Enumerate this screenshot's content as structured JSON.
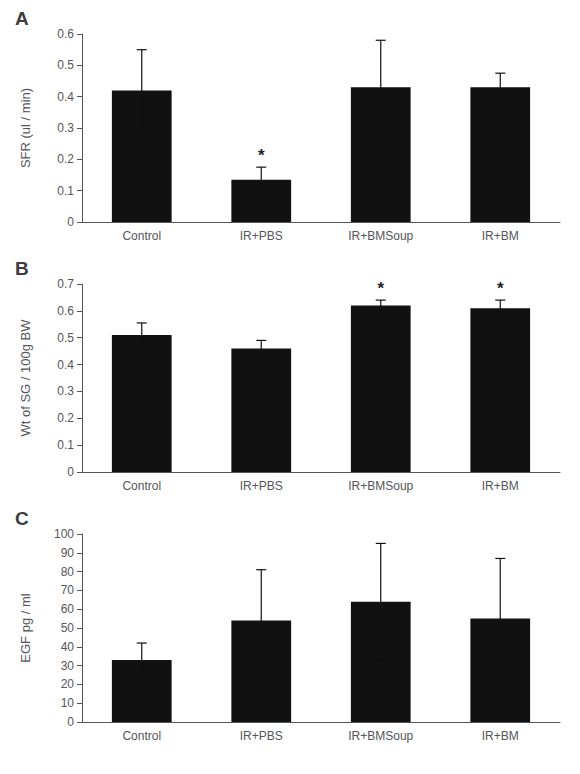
{
  "chart_data": [
    {
      "type": "bar",
      "title": "A",
      "categories": [
        "Control",
        "IR+PBS",
        "IR+BMSoup",
        "IR+BM"
      ],
      "values": [
        0.42,
        0.135,
        0.43,
        0.43
      ],
      "errors": [
        0.13,
        0.04,
        0.15,
        0.045
      ],
      "ylabel": "SFR (ul / min)",
      "ylim": [
        0,
        0.6
      ],
      "yticks": [
        0,
        0.1,
        0.2,
        0.3,
        0.4,
        0.5,
        0.6
      ],
      "annotations": [
        {
          "x": "IR+PBS",
          "text": "*"
        }
      ],
      "color": "#111111",
      "grid": false
    },
    {
      "type": "bar",
      "title": "B",
      "categories": [
        "Control",
        "IR+PBS",
        "IR+BMSoup",
        "IR+BM"
      ],
      "values": [
        0.51,
        0.46,
        0.62,
        0.61
      ],
      "errors": [
        0.045,
        0.03,
        0.02,
        0.03
      ],
      "ylabel": "Wt of SG / 100g BW",
      "ylim": [
        0,
        0.7
      ],
      "yticks": [
        0,
        0.1,
        0.2,
        0.3,
        0.4,
        0.5,
        0.6,
        0.7
      ],
      "annotations": [
        {
          "x": "IR+BMSoup",
          "text": "*"
        },
        {
          "x": "IR+BM",
          "text": "*"
        }
      ],
      "color": "#111111",
      "grid": false
    },
    {
      "type": "bar",
      "title": "C",
      "categories": [
        "Control",
        "IR+PBS",
        "IR+BMSoup",
        "IR+BM"
      ],
      "values": [
        33,
        54,
        64,
        55
      ],
      "errors": [
        9,
        27,
        31,
        32
      ],
      "ylabel": "EGF pg / ml",
      "ylim": [
        0,
        100
      ],
      "yticks": [
        0,
        10,
        20,
        30,
        40,
        50,
        60,
        70,
        80,
        90,
        100
      ],
      "color": "#111111",
      "grid": false
    }
  ]
}
